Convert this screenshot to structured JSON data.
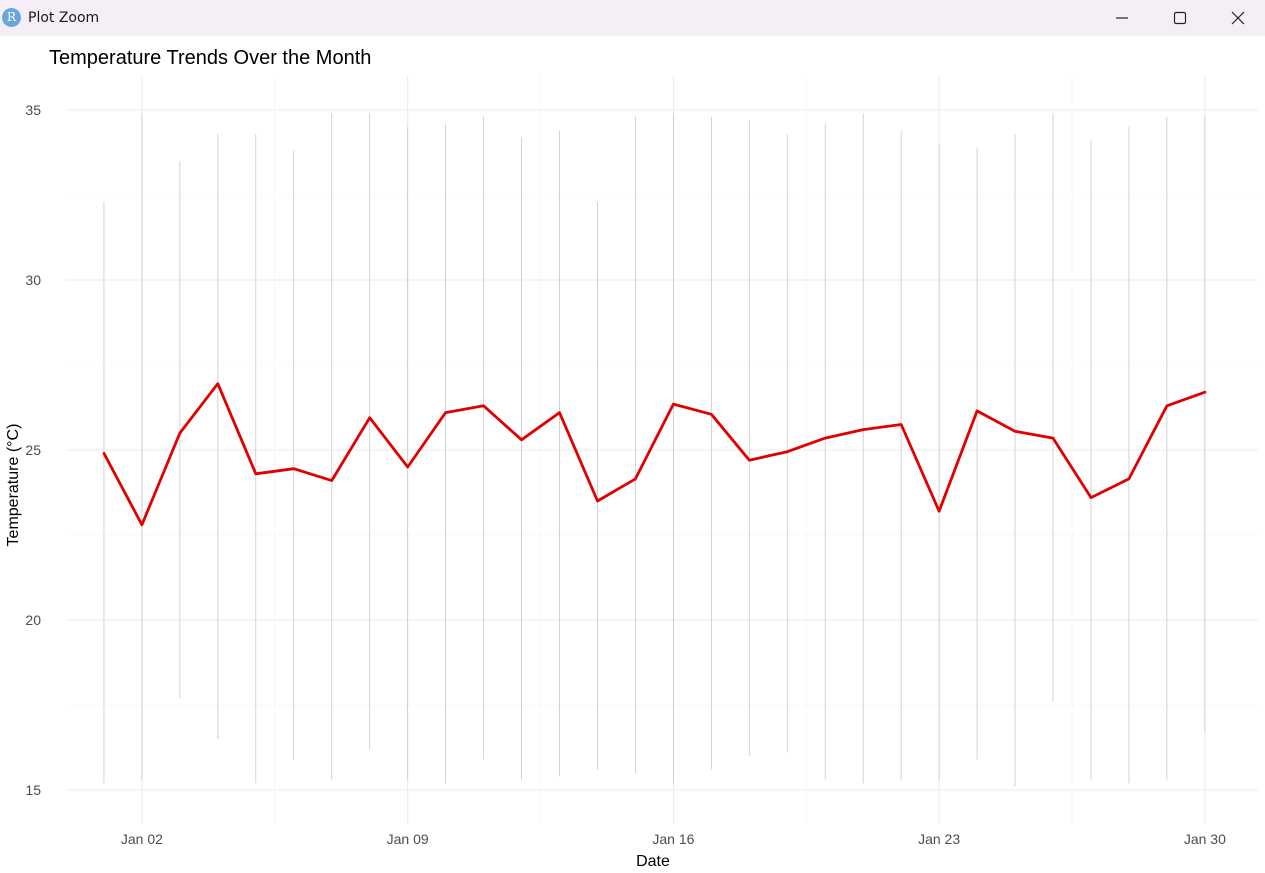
{
  "window": {
    "title": "Plot Zoom",
    "icon_letter": "R",
    "icon_color": "#6aa6da",
    "controls": [
      "minimize-icon",
      "maximize-icon",
      "close-icon"
    ]
  },
  "chart_data": {
    "type": "line",
    "title": "Temperature Trends Over the Month",
    "xlabel": "Date",
    "ylabel": "Temperature (°C)",
    "line_color": "#e00000",
    "x": [
      "2024-01-01",
      "2024-01-02",
      "2024-01-03",
      "2024-01-04",
      "2024-01-05",
      "2024-01-06",
      "2024-01-07",
      "2024-01-08",
      "2024-01-09",
      "2024-01-10",
      "2024-01-11",
      "2024-01-12",
      "2024-01-13",
      "2024-01-14",
      "2024-01-15",
      "2024-01-16",
      "2024-01-17",
      "2024-01-18",
      "2024-01-19",
      "2024-01-20",
      "2024-01-21",
      "2024-01-22",
      "2024-01-23",
      "2024-01-24",
      "2024-01-25",
      "2024-01-26",
      "2024-01-27",
      "2024-01-28",
      "2024-01-29",
      "2024-01-30"
    ],
    "series": [
      {
        "values": [
          24.9,
          22.8,
          25.5,
          26.95,
          24.3,
          24.45,
          24.1,
          25.95,
          24.5,
          26.1,
          26.3,
          25.3,
          26.1,
          23.5,
          24.15,
          26.35,
          26.05,
          24.7,
          24.95,
          25.35,
          25.6,
          25.75,
          23.2,
          26.15,
          25.55,
          25.35,
          23.6,
          24.15,
          26.3,
          26.7
        ]
      }
    ],
    "error_bars": [
      [
        15.2,
        32.3
      ],
      [
        15.3,
        34.9
      ],
      [
        17.7,
        33.5
      ],
      [
        16.5,
        34.3
      ],
      [
        15.2,
        34.3
      ],
      [
        15.9,
        33.8
      ],
      [
        15.3,
        34.9
      ],
      [
        16.2,
        34.9
      ],
      [
        15.3,
        34.5
      ],
      [
        15.2,
        34.6
      ],
      [
        15.9,
        34.8
      ],
      [
        15.3,
        34.2
      ],
      [
        15.4,
        34.4
      ],
      [
        15.6,
        32.3
      ],
      [
        15.5,
        34.8
      ],
      [
        15.2,
        34.9
      ],
      [
        15.6,
        34.8
      ],
      [
        16.0,
        34.7
      ],
      [
        16.1,
        34.3
      ],
      [
        15.3,
        34.6
      ],
      [
        15.2,
        34.9
      ],
      [
        15.3,
        34.4
      ],
      [
        15.3,
        34.0
      ],
      [
        15.9,
        33.9
      ],
      [
        15.1,
        34.3
      ],
      [
        17.6,
        34.9
      ],
      [
        15.3,
        34.1
      ],
      [
        15.2,
        34.5
      ],
      [
        15.3,
        34.8
      ],
      [
        16.7,
        34.8
      ]
    ],
    "error_bar_color": "#c8c8c8",
    "ylim": [
      14.0,
      36.0
    ],
    "yticks": [
      15,
      20,
      25,
      30,
      35
    ],
    "xticks": [
      {
        "date": "2024-01-02",
        "label": "Jan 02"
      },
      {
        "date": "2024-01-09",
        "label": "Jan 09"
      },
      {
        "date": "2024-01-16",
        "label": "Jan 16"
      },
      {
        "date": "2024-01-23",
        "label": "Jan 23"
      },
      {
        "date": "2024-01-30",
        "label": "Jan 30"
      }
    ],
    "grid": true,
    "legend": "none"
  }
}
